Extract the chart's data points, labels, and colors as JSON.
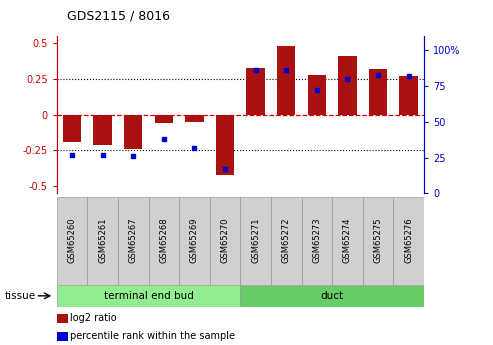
{
  "title": "GDS2115 / 8016",
  "samples": [
    "GSM65260",
    "GSM65261",
    "GSM65267",
    "GSM65268",
    "GSM65269",
    "GSM65270",
    "GSM65271",
    "GSM65272",
    "GSM65273",
    "GSM65274",
    "GSM65275",
    "GSM65276"
  ],
  "log2_ratio": [
    -0.19,
    -0.21,
    -0.24,
    -0.06,
    -0.05,
    -0.42,
    0.33,
    0.48,
    0.28,
    0.41,
    0.32,
    0.27
  ],
  "percentile": [
    27,
    27,
    26,
    38,
    32,
    17,
    86,
    86,
    72,
    80,
    83,
    82
  ],
  "groups": [
    {
      "label": "terminal end bud",
      "start": 0,
      "end": 6,
      "color": "#90ee90"
    },
    {
      "label": "duct",
      "start": 6,
      "end": 12,
      "color": "#66cc66"
    }
  ],
  "tissue_label": "tissue",
  "bar_color": "#aa1111",
  "dot_color": "#0000cc",
  "ylim": [
    -0.55,
    0.55
  ],
  "right_ylim": [
    0,
    110
  ],
  "right_yticks": [
    0,
    25,
    50,
    75,
    100
  ],
  "right_yticklabels": [
    "0",
    "25",
    "50",
    "75",
    "100%"
  ],
  "left_yticks": [
    -0.5,
    -0.25,
    0,
    0.25,
    0.5
  ],
  "left_yticklabels": [
    "-0.5",
    "-0.25",
    "0",
    "0.25",
    "0.5"
  ],
  "dotted_lines": [
    0.25,
    -0.25
  ],
  "zero_line_color": "#cc0000",
  "background_color": "#ffffff",
  "legend_items": [
    {
      "label": "log2 ratio",
      "color": "#aa1111"
    },
    {
      "label": "percentile rank within the sample",
      "color": "#0000cc"
    }
  ],
  "bar_color_light": "#d8d8d8",
  "sample_box_color": "#d0d0d0"
}
